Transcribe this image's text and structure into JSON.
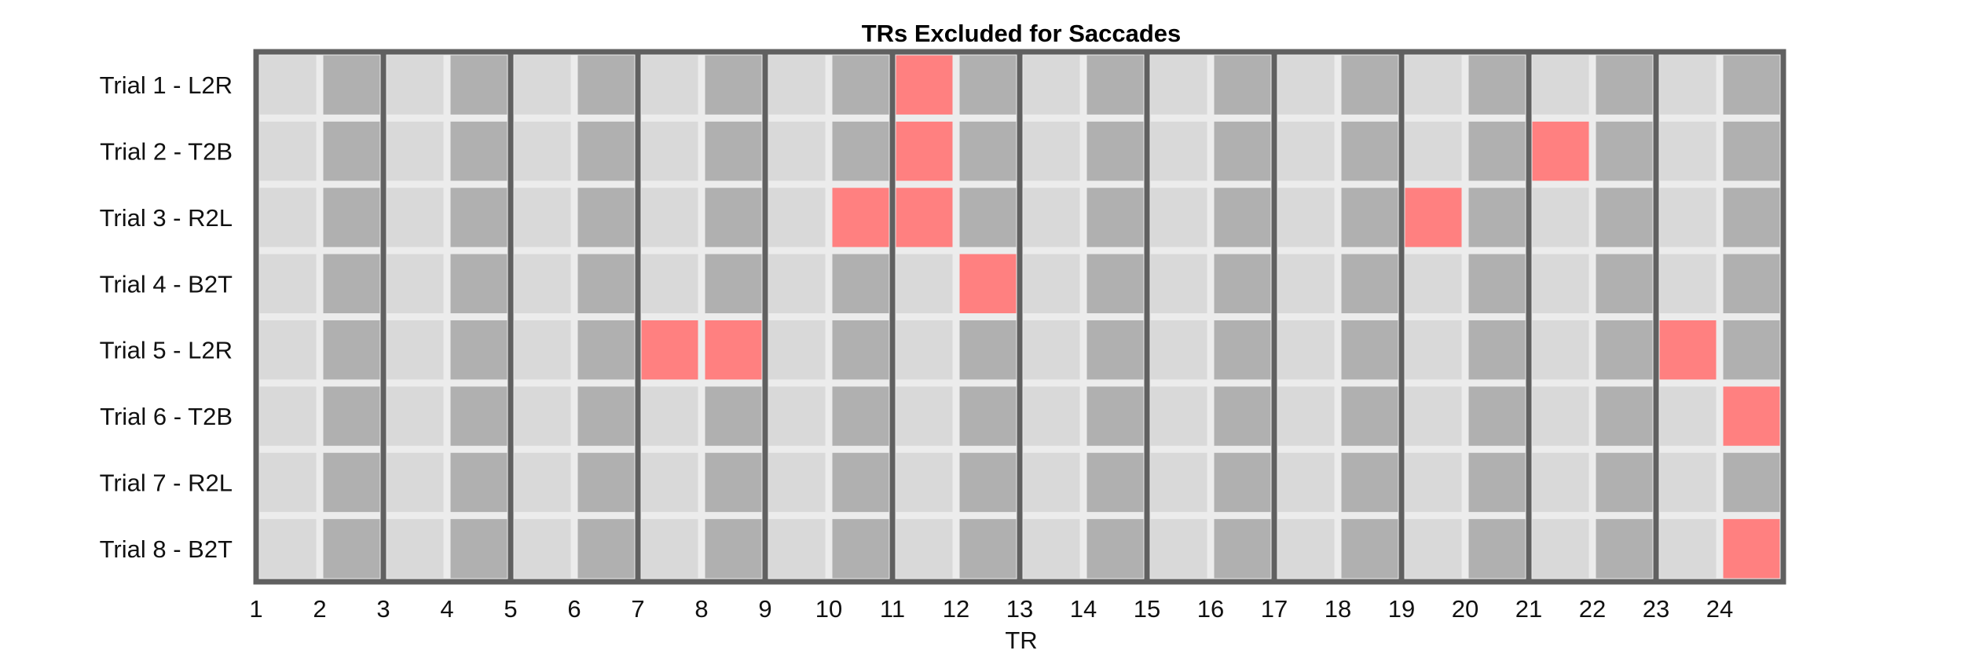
{
  "chart_data": {
    "type": "heatmap",
    "title": "TRs Excluded for Saccades",
    "xlabel": "TR",
    "ylabel": "",
    "x_ticks": [
      "1",
      "2",
      "3",
      "4",
      "5",
      "6",
      "7",
      "8",
      "9",
      "10",
      "11",
      "12",
      "13",
      "14",
      "15",
      "16",
      "17",
      "18",
      "19",
      "20",
      "21",
      "22",
      "23",
      "24"
    ],
    "rows": [
      "Trial 1 - L2R",
      "Trial 2 - T2B",
      "Trial 3 - R2L",
      "Trial 4 - B2T",
      "Trial 5 - L2R",
      "Trial 6 - T2B",
      "Trial 7 - R2L",
      "Trial 8 - B2T"
    ],
    "n_columns": 24,
    "excluded": [
      {
        "trial": 1,
        "tr": [
          11
        ]
      },
      {
        "trial": 2,
        "tr": [
          11,
          21
        ]
      },
      {
        "trial": 3,
        "tr": [
          10,
          11,
          19
        ]
      },
      {
        "trial": 4,
        "tr": [
          12
        ]
      },
      {
        "trial": 5,
        "tr": [
          7,
          8,
          23
        ]
      },
      {
        "trial": 6,
        "tr": [
          24
        ]
      },
      {
        "trial": 7,
        "tr": []
      },
      {
        "trial": 8,
        "tr": [
          24
        ]
      }
    ],
    "colors": {
      "cell_light": "#d9d9d9",
      "cell_dark": "#b0b0b0",
      "excluded": "#ff8080",
      "grid_gap": "#ececec",
      "thick_line": "#606060"
    }
  }
}
